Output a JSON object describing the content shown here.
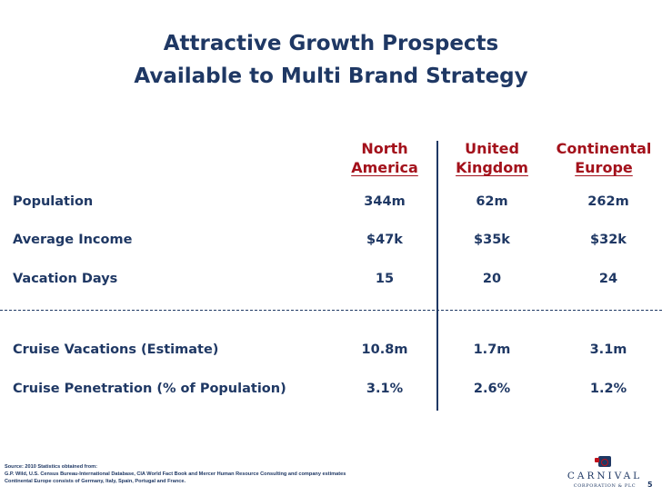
{
  "slide": {
    "title_line1": "Attractive Growth Prospects",
    "title_line2": "Available to Multi Brand Strategy",
    "page_number": "5"
  },
  "columns": [
    {
      "line1": "North",
      "line2": "America"
    },
    {
      "line1": "United",
      "line2": "Kingdom"
    },
    {
      "line1": "Continental",
      "line2": "Europe"
    }
  ],
  "rows": [
    {
      "label": "Population",
      "values": [
        "344m",
        "62m",
        "262m"
      ]
    },
    {
      "label": "Average Income",
      "values": [
        "$47k",
        "$35k",
        "$32k"
      ]
    },
    {
      "label": "Vacation Days",
      "values": [
        "15",
        "20",
        "24"
      ]
    },
    {
      "label": "Cruise Vacations (Estimate)",
      "values": [
        "10.8m",
        "1.7m",
        "3.1m"
      ]
    },
    {
      "label": "Cruise Penetration (% of Population)",
      "values": [
        "3.1%",
        "2.6%",
        "1.2%"
      ]
    }
  ],
  "footnote": {
    "line1": "Source:  2010 Statistics obtained from:",
    "line2": "G.P. Wild, U.S. Census Bureau-International Database, CIA World Fact Book and Mercer Human Resource Consulting and company estimates",
    "line3": "Continental Europe consists of Germany, Italy, Spain, Portugal and France."
  },
  "logo": {
    "name": "CARNIVAL",
    "subtitle": "CORPORATION & PLC"
  },
  "colors": {
    "title": "#1f3864",
    "header": "#a3111b",
    "text": "#1f3864"
  }
}
